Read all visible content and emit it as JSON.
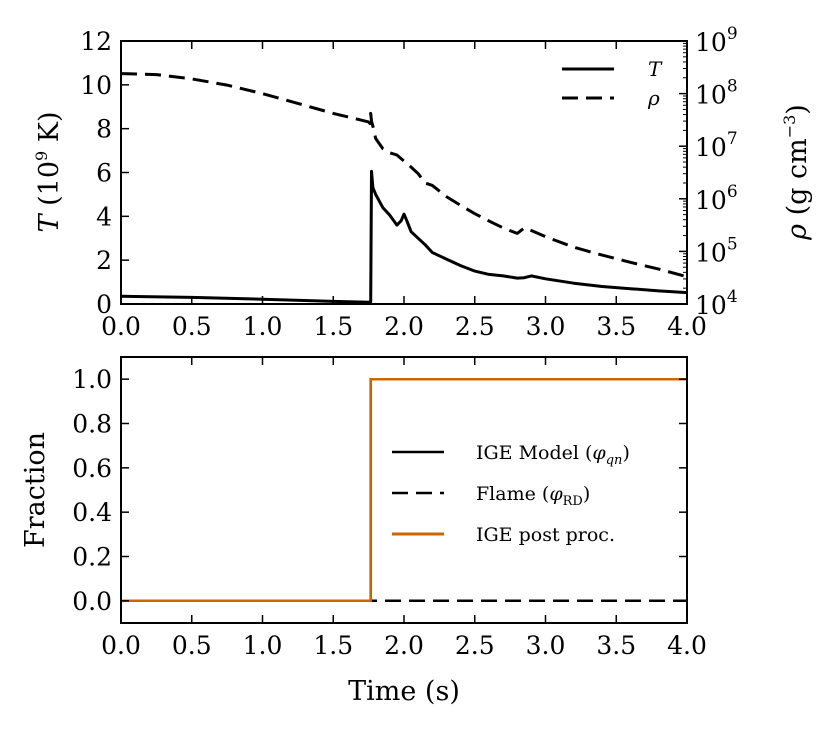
{
  "chart_data": [
    {
      "type": "line",
      "panel": "top",
      "xlim": [
        0,
        4
      ],
      "ylim": [
        0,
        12
      ],
      "y2lim_log10": [
        4,
        9
      ],
      "x_ticks": [
        "0.0",
        "0.5",
        "1.0",
        "1.5",
        "2.0",
        "2.5",
        "3.0",
        "3.5",
        "4.0"
      ],
      "y_ticks": [
        "0",
        "2",
        "4",
        "6",
        "8",
        "10",
        "12"
      ],
      "y2_ticks": [
        {
          "base": "10",
          "exp": "4"
        },
        {
          "base": "10",
          "exp": "5"
        },
        {
          "base": "10",
          "exp": "6"
        },
        {
          "base": "10",
          "exp": "7"
        },
        {
          "base": "10",
          "exp": "8"
        },
        {
          "base": "10",
          "exp": "9"
        }
      ],
      "ylabel": {
        "var": "T",
        "pre": " (10",
        "exp": "9",
        "post": "  K)"
      },
      "y2label": {
        "var": "ρ",
        "pre": " (g cm",
        "exp": "−3",
        "post": ")"
      },
      "legend_position": "top-right",
      "legend": [
        {
          "label": "T",
          "style": "solid"
        },
        {
          "label": "ρ",
          "style": "dashed"
        }
      ],
      "series": [
        {
          "name": "T",
          "axis": "left",
          "style": "solid",
          "color": "#000000",
          "x": [
            0.0,
            0.5,
            1.0,
            1.5,
            1.76,
            1.765,
            1.77,
            1.78,
            1.8,
            1.85,
            1.9,
            1.95,
            1.98,
            2.0,
            2.02,
            2.05,
            2.1,
            2.15,
            2.2,
            2.25,
            2.3,
            2.4,
            2.5,
            2.6,
            2.7,
            2.8,
            2.85,
            2.9,
            3.0,
            3.2,
            3.4,
            3.6,
            3.8,
            4.0
          ],
          "y": [
            0.35,
            0.3,
            0.22,
            0.12,
            0.08,
            0.1,
            6.05,
            5.3,
            5.0,
            4.4,
            4.05,
            3.6,
            3.8,
            4.1,
            3.8,
            3.3,
            3.0,
            2.7,
            2.35,
            2.2,
            2.05,
            1.75,
            1.5,
            1.35,
            1.28,
            1.18,
            1.2,
            1.28,
            1.15,
            0.95,
            0.8,
            0.7,
            0.6,
            0.52
          ]
        },
        {
          "name": "ρ",
          "axis": "right",
          "style": "dashed",
          "color": "#000000",
          "x": [
            0.0,
            0.25,
            0.5,
            0.75,
            1.0,
            1.25,
            1.5,
            1.75,
            1.76,
            1.765,
            1.77,
            1.78,
            1.8,
            1.85,
            1.9,
            1.95,
            2.0,
            2.05,
            2.1,
            2.15,
            2.2,
            2.3,
            2.4,
            2.5,
            2.6,
            2.7,
            2.8,
            2.85,
            2.9,
            3.0,
            3.2,
            3.4,
            3.6,
            3.8,
            4.0
          ],
          "y": [
            240000000.0,
            230000000.0,
            190000000.0,
            145000000.0,
            100000000.0,
            65000000.0,
            42000000.0,
            29000000.0,
            27000000.0,
            42000000.0,
            30000000.0,
            24000000.0,
            14000000.0,
            9000000.0,
            7500000.0,
            6800000.0,
            5200000.0,
            4000000.0,
            3000000.0,
            2000000.0,
            1800000.0,
            1100000.0,
            750000.0,
            520000.0,
            380000.0,
            280000.0,
            220000.0,
            280000.0,
            250000.0,
            190000.0,
            120000.0,
            85000.0,
            62000.0,
            46000.0,
            33000.0
          ]
        }
      ]
    },
    {
      "type": "line",
      "panel": "bottom",
      "xlim": [
        0,
        4
      ],
      "ylim": [
        -0.1,
        1.1
      ],
      "x_ticks": [
        "0.0",
        "0.5",
        "1.0",
        "1.5",
        "2.0",
        "2.5",
        "3.0",
        "3.5",
        "4.0"
      ],
      "y_ticks": [
        "0.0",
        "0.2",
        "0.4",
        "0.6",
        "0.8",
        "1.0"
      ],
      "xlabel": "Time (s)",
      "ylabel": "Fraction",
      "legend_position": "center-right",
      "legend": [
        {
          "label": "IGE Model (",
          "math": "φ",
          "sub": "qn",
          "close": ")",
          "style": "solid",
          "color": "#000000"
        },
        {
          "label": "Flame (",
          "math": "φ",
          "sub": "RD",
          "close": ")",
          "style": "dashed",
          "color": "#000000"
        },
        {
          "label": "IGE post proc.",
          "style": "solid",
          "color": "#cc6600"
        }
      ],
      "series": [
        {
          "name": "IGE Model (φqn)",
          "style": "solid",
          "color": "#000000",
          "x": [
            0,
            1.765,
            1.765,
            4
          ],
          "y": [
            0,
            0,
            1,
            1
          ]
        },
        {
          "name": "Flame (φRD)",
          "style": "dashed",
          "color": "#000000",
          "x": [
            0,
            4
          ],
          "y": [
            0,
            0
          ]
        },
        {
          "name": "IGE post proc.",
          "style": "solid",
          "color": "#cc6600",
          "x": [
            0,
            1.765,
            1.765,
            4
          ],
          "y": [
            0,
            0,
            1,
            1
          ]
        }
      ]
    }
  ]
}
